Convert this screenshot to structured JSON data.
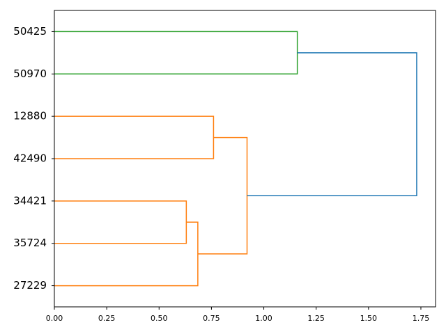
{
  "chart_data": {
    "type": "dendrogram",
    "orientation": "right",
    "leaves": [
      "50425",
      "50970",
      "12880",
      "42490",
      "34421",
      "35724",
      "27229"
    ],
    "links": [
      {
        "children": [
          0,
          1
        ],
        "height": 1.16,
        "color": "#2ca02c"
      },
      {
        "children": [
          2,
          3
        ],
        "height": 0.76,
        "color": "#ff7f0e"
      },
      {
        "children": [
          4,
          5
        ],
        "height": 0.63,
        "color": "#ff7f0e"
      },
      {
        "children": [
          9,
          6
        ],
        "height": 0.685,
        "color": "#ff7f0e"
      },
      {
        "children": [
          8,
          10
        ],
        "height": 0.92,
        "color": "#ff7f0e"
      },
      {
        "children": [
          7,
          11
        ],
        "height": 1.73,
        "color": "#1f77b4"
      }
    ],
    "xlim": [
      0,
      1.82
    ],
    "xticks": [
      {
        "value": 0,
        "label": "0.00"
      },
      {
        "value": 0.25,
        "label": "0.25"
      },
      {
        "value": 0.5,
        "label": "0.50"
      },
      {
        "value": 0.75,
        "label": "0.75"
      },
      {
        "value": 1,
        "label": "1.00"
      },
      {
        "value": 1.25,
        "label": "1.25"
      },
      {
        "value": 1.5,
        "label": "1.50"
      },
      {
        "value": 1.75,
        "label": "1.75"
      }
    ]
  }
}
